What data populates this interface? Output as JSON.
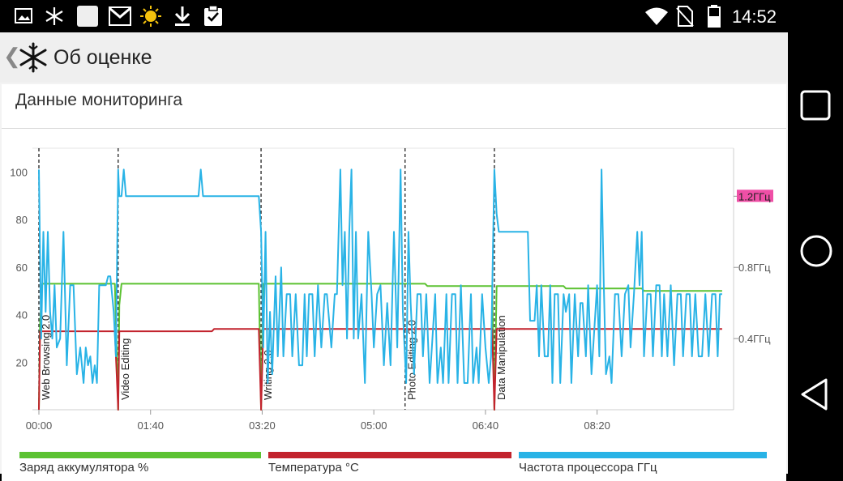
{
  "status_bar": {
    "time": "14:52",
    "left_icons": [
      "gallery-icon",
      "snowflake-icon",
      "blank-square-icon",
      "gmail-icon",
      "sun-icon",
      "download-icon",
      "clipboard-check-icon"
    ],
    "right_icons": [
      "wifi-icon",
      "no-sim-icon",
      "battery-icon"
    ]
  },
  "action_bar": {
    "title": "Об оценке",
    "back_icon": "chevron-left-icon",
    "app_icon": "snowflake-icon"
  },
  "card": {
    "title": "Данные мониторинга"
  },
  "legend": [
    {
      "label": "Заряд аккумулятора %",
      "color": "#5cc232"
    },
    {
      "label": "Температура °C",
      "color": "#c2232d"
    },
    {
      "label": "Частота процессора ГГц",
      "color": "#29b3e6"
    }
  ],
  "nav_bar": {
    "buttons": [
      "square-icon",
      "circle-icon",
      "triangle-back-icon"
    ]
  },
  "chart_data": {
    "type": "line",
    "x_unit": "mm:ss",
    "x_range": [
      0,
      615
    ],
    "x_ticks": [
      {
        "t": 0,
        "label": "00:00"
      },
      {
        "t": 100,
        "label": "01:40"
      },
      {
        "t": 200,
        "label": "03:20"
      },
      {
        "t": 300,
        "label": "05:00"
      },
      {
        "t": 400,
        "label": "06:40"
      },
      {
        "t": 500,
        "label": "08:20"
      }
    ],
    "y_left": {
      "range": [
        0,
        110
      ],
      "ticks": [
        20,
        40,
        60,
        80,
        100
      ]
    },
    "y_right": {
      "range": [
        0,
        1.47
      ],
      "ticks": [
        {
          "v": 0.4,
          "label": "0.4ГГц"
        },
        {
          "v": 0.8,
          "label": "0.8ГГц"
        },
        {
          "v": 1.2,
          "label": "1.2ГГц",
          "highlight": true
        }
      ]
    },
    "sections": [
      {
        "t": 0,
        "label": "Web Browsing 2.0"
      },
      {
        "t": 71,
        "label": "Video Editing"
      },
      {
        "t": 199,
        "label": "Writing 2.0"
      },
      {
        "t": 328,
        "label": "Photo Editing 2.0"
      },
      {
        "t": 408,
        "label": "Data Manipulation"
      }
    ],
    "series": [
      {
        "name": "Заряд аккумулятора %",
        "color": "#5cc232",
        "axis": "left",
        "points": [
          [
            0,
            0
          ],
          [
            1,
            36
          ],
          [
            3,
            53
          ],
          [
            68,
            53
          ],
          [
            71,
            0
          ],
          [
            72,
            44
          ],
          [
            74,
            53
          ],
          [
            197,
            53
          ],
          [
            199,
            0
          ],
          [
            201,
            53
          ],
          [
            346,
            53
          ],
          [
            348,
            52
          ],
          [
            406,
            52
          ],
          [
            408,
            0
          ],
          [
            410,
            52
          ],
          [
            470,
            52
          ],
          [
            472,
            51
          ],
          [
            540,
            51
          ],
          [
            542,
            50
          ],
          [
            612,
            50
          ]
        ]
      },
      {
        "name": "Температура °C",
        "color": "#c2232d",
        "axis": "left",
        "points": [
          [
            0,
            0
          ],
          [
            1,
            33
          ],
          [
            68,
            33
          ],
          [
            71,
            0
          ],
          [
            72,
            33
          ],
          [
            155,
            33
          ],
          [
            157,
            34
          ],
          [
            197,
            34
          ],
          [
            199,
            0
          ],
          [
            201,
            34
          ],
          [
            406,
            34
          ],
          [
            408,
            0
          ],
          [
            410,
            34
          ],
          [
            612,
            34
          ]
        ]
      },
      {
        "name": "Частота процессора ГГц",
        "color": "#29b3e6",
        "axis": "right",
        "points": [
          [
            0,
            1.35
          ],
          [
            2,
            0.4
          ],
          [
            4,
            1.0
          ],
          [
            6,
            0.55
          ],
          [
            8,
            1.0
          ],
          [
            10,
            0.55
          ],
          [
            12,
            0.4
          ],
          [
            14,
            0.7
          ],
          [
            16,
            0.35
          ],
          [
            19,
            0.4
          ],
          [
            22,
            1.0
          ],
          [
            25,
            0.25
          ],
          [
            28,
            0.7
          ],
          [
            31,
            0.7
          ],
          [
            34,
            0.2
          ],
          [
            37,
            0.35
          ],
          [
            40,
            0.15
          ],
          [
            42,
            0.35
          ],
          [
            44,
            0.25
          ],
          [
            46,
            0.3
          ],
          [
            48,
            0.15
          ],
          [
            50,
            0.25
          ],
          [
            52,
            0.15
          ],
          [
            54,
            0.7
          ],
          [
            56,
            0.7
          ],
          [
            60,
            0.7
          ],
          [
            62,
            0.75
          ],
          [
            64,
            0.75
          ],
          [
            67,
            0.55
          ],
          [
            69,
            0.3
          ],
          [
            71,
            1.35
          ],
          [
            72,
            1.2
          ],
          [
            74,
            1.2
          ],
          [
            76,
            1.35
          ],
          [
            78,
            1.2
          ],
          [
            143,
            1.2
          ],
          [
            145,
            1.35
          ],
          [
            147,
            1.2
          ],
          [
            197,
            1.2
          ],
          [
            199,
            1.0
          ],
          [
            201,
            0.35
          ],
          [
            203,
            1.0
          ],
          [
            205,
            0.15
          ],
          [
            207,
            0.55
          ],
          [
            209,
            0.2
          ],
          [
            212,
            0.75
          ],
          [
            214,
            0.3
          ],
          [
            217,
            0.8
          ],
          [
            219,
            0.3
          ],
          [
            222,
            0.65
          ],
          [
            225,
            0.65
          ],
          [
            227,
            0.3
          ],
          [
            230,
            0.65
          ],
          [
            233,
            0.25
          ],
          [
            236,
            0.25
          ],
          [
            238,
            0.65
          ],
          [
            240,
            0.3
          ],
          [
            242,
            0.65
          ],
          [
            245,
            0.65
          ],
          [
            247,
            0.3
          ],
          [
            250,
            0.7
          ],
          [
            253,
            0.35
          ],
          [
            256,
            0.65
          ],
          [
            258,
            0.65
          ],
          [
            262,
            0.35
          ],
          [
            265,
            0.65
          ],
          [
            267,
            0.65
          ],
          [
            270,
            1.35
          ],
          [
            272,
            0.7
          ],
          [
            274,
            1.0
          ],
          [
            276,
            0.4
          ],
          [
            278,
            1.0
          ],
          [
            280,
            1.35
          ],
          [
            282,
            0.4
          ],
          [
            284,
            1.0
          ],
          [
            286,
            0.4
          ],
          [
            289,
            0.65
          ],
          [
            292,
            0.15
          ],
          [
            295,
            1.0
          ],
          [
            298,
            0.65
          ],
          [
            300,
            0.35
          ],
          [
            303,
            0.65
          ],
          [
            306,
            0.7
          ],
          [
            309,
            0.25
          ],
          [
            312,
            0.6
          ],
          [
            315,
            0.25
          ],
          [
            318,
            1.0
          ],
          [
            321,
            0.35
          ],
          [
            324,
            1.35
          ],
          [
            326,
            0.55
          ],
          [
            329,
            0.15
          ],
          [
            331,
            1.0
          ],
          [
            333,
            0.6
          ],
          [
            336,
            0.2
          ],
          [
            339,
            0.65
          ],
          [
            342,
            0.65
          ],
          [
            344,
            0.3
          ],
          [
            347,
            0.65
          ],
          [
            350,
            0.15
          ],
          [
            352,
            0.35
          ],
          [
            355,
            0.65
          ],
          [
            357,
            0.15
          ],
          [
            360,
            0.35
          ],
          [
            362,
            0.15
          ],
          [
            365,
            0.65
          ],
          [
            367,
            0.15
          ],
          [
            370,
            0.65
          ],
          [
            373,
            0.65
          ],
          [
            375,
            0.15
          ],
          [
            378,
            0.7
          ],
          [
            381,
            0.15
          ],
          [
            384,
            0.15
          ],
          [
            387,
            0.65
          ],
          [
            389,
            0.15
          ],
          [
            392,
            0.35
          ],
          [
            394,
            0.15
          ],
          [
            397,
            0.65
          ],
          [
            400,
            0.35
          ],
          [
            403,
            0.15
          ],
          [
            405,
            0.3
          ],
          [
            408,
            1.35
          ],
          [
            410,
            1.1
          ],
          [
            412,
            1.0
          ],
          [
            438,
            1.0
          ],
          [
            440,
            0.5
          ],
          [
            444,
            0.5
          ],
          [
            446,
            0.7
          ],
          [
            448,
            0.3
          ],
          [
            450,
            0.7
          ],
          [
            453,
            0.3
          ],
          [
            456,
            0.3
          ],
          [
            458,
            0.7
          ],
          [
            460,
            0.15
          ],
          [
            462,
            0.65
          ],
          [
            465,
            0.65
          ],
          [
            467,
            0.15
          ],
          [
            470,
            0.65
          ],
          [
            472,
            0.55
          ],
          [
            475,
            0.65
          ],
          [
            477,
            0.15
          ],
          [
            480,
            0.65
          ],
          [
            483,
            0.3
          ],
          [
            485,
            0.6
          ],
          [
            487,
            0.6
          ],
          [
            490,
            0.3
          ],
          [
            492,
            0.7
          ],
          [
            495,
            0.2
          ],
          [
            497,
            0.4
          ],
          [
            500,
            0.7
          ],
          [
            502,
            0.3
          ],
          [
            504,
            1.35
          ],
          [
            506,
            0.7
          ],
          [
            508,
            0.2
          ],
          [
            511,
            0.3
          ],
          [
            513,
            0.15
          ],
          [
            516,
            0.65
          ],
          [
            519,
            0.65
          ],
          [
            522,
            0.3
          ],
          [
            525,
            0.65
          ],
          [
            528,
            0.7
          ],
          [
            530,
            0.35
          ],
          [
            533,
            0.65
          ],
          [
            536,
            1.0
          ],
          [
            538,
            0.7
          ],
          [
            540,
            1.0
          ],
          [
            542,
            0.3
          ],
          [
            545,
            0.65
          ],
          [
            548,
            0.65
          ],
          [
            550,
            0.3
          ],
          [
            553,
            0.7
          ],
          [
            556,
            0.7
          ],
          [
            558,
            0.3
          ],
          [
            560,
            0.65
          ],
          [
            563,
            0.3
          ],
          [
            566,
            0.7
          ],
          [
            569,
            0.25
          ],
          [
            572,
            0.65
          ],
          [
            575,
            0.65
          ],
          [
            577,
            0.3
          ],
          [
            580,
            0.65
          ],
          [
            583,
            0.65
          ],
          [
            585,
            0.3
          ],
          [
            588,
            0.65
          ],
          [
            591,
            0.3
          ],
          [
            594,
            0.3
          ],
          [
            597,
            0.65
          ],
          [
            600,
            0.3
          ],
          [
            603,
            0.65
          ],
          [
            606,
            0.65
          ],
          [
            608,
            0.3
          ],
          [
            610,
            0.65
          ],
          [
            612,
            0.65
          ]
        ]
      }
    ]
  }
}
